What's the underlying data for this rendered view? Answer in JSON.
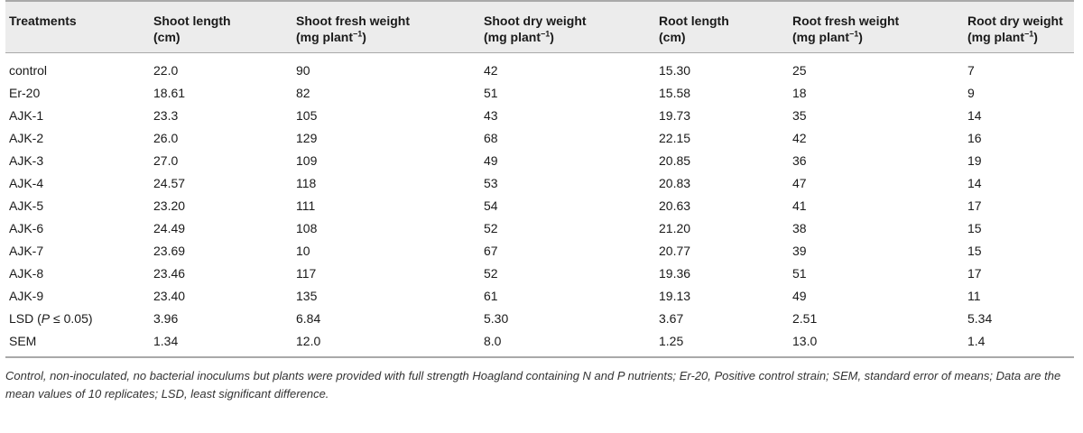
{
  "headers": [
    {
      "line1": "Treatments",
      "line2": "",
      "sup": ""
    },
    {
      "line1": "Shoot length",
      "line2": "(cm)",
      "sup": ""
    },
    {
      "line1": "Shoot fresh weight",
      "line2": "(mg plant",
      "sup": "−1",
      "close": ")"
    },
    {
      "line1": "Shoot dry weight",
      "line2": "(mg plant",
      "sup": "−1",
      "close": ")"
    },
    {
      "line1": "Root length",
      "line2": "(cm)",
      "sup": ""
    },
    {
      "line1": "Root fresh weight",
      "line2": "(mg plant",
      "sup": "−1",
      "close": ")"
    },
    {
      "line1": "Root dry weight",
      "line2": "(mg plant",
      "sup": "−1",
      "close": ")"
    }
  ],
  "rows": [
    [
      "control",
      "22.0",
      "90",
      "42",
      "15.30",
      "25",
      "7"
    ],
    [
      "Er-20",
      "18.61",
      "82",
      "51",
      "15.58",
      "18",
      "9"
    ],
    [
      "AJK-1",
      "23.3",
      "105",
      "43",
      "19.73",
      "35",
      "14"
    ],
    [
      "AJK-2",
      "26.0",
      "129",
      "68",
      "22.15",
      "42",
      "16"
    ],
    [
      "AJK-3",
      "27.0",
      "109",
      "49",
      "20.85",
      "36",
      "19"
    ],
    [
      "AJK-4",
      "24.57",
      "118",
      "53",
      "20.83",
      "47",
      "14"
    ],
    [
      "AJK-5",
      "23.20",
      "111",
      "54",
      "20.63",
      "41",
      "17"
    ],
    [
      "AJK-6",
      "24.49",
      "108",
      "52",
      "21.20",
      "38",
      "15"
    ],
    [
      "AJK-7",
      "23.69",
      "10",
      "67",
      "20.77",
      "39",
      "15"
    ],
    [
      "AJK-8",
      "23.46",
      "117",
      "52",
      "19.36",
      "51",
      "17"
    ],
    [
      "AJK-9",
      "23.40",
      "135",
      "61",
      "19.13",
      "49",
      "11"
    ],
    [
      "LSD (P ≤ 0.05)",
      "3.96",
      "6.84",
      "5.30",
      "3.67",
      "2.51",
      "5.34"
    ],
    [
      "SEM",
      "1.34",
      "12.0",
      "8.0",
      "1.25",
      "13.0",
      "1.4"
    ]
  ],
  "lsd_label": {
    "prefix": "LSD (",
    "italic": "P",
    "suffix": " ≤ 0.05)"
  },
  "footnote": "Control, non-inoculated, no bacterial inoculums but plants were provided with full strength Hoagland containing N and P nutrients; Er-20, Positive control strain; SEM, standard error of means; Data are the mean values of 10 replicates; LSD, least significant difference."
}
